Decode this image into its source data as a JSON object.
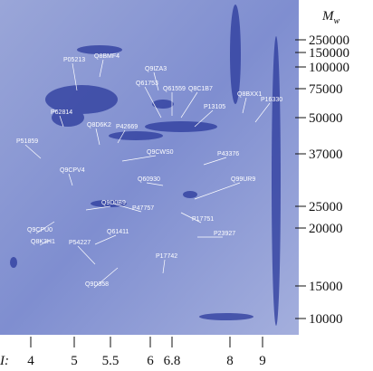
{
  "gel": {
    "spot_labels": [
      "Q9IZA3",
      "Q61753",
      "Q61559",
      "Q8C1B7",
      "P13105",
      "Q8BMF4",
      "P05213",
      "P62814",
      "P42669",
      "Q8D6K2",
      "P51859",
      "Q9CWS0",
      "P43376",
      "Q8BXX1",
      "P16330",
      "Q9CPV4",
      "Q60930",
      "Q9D0B9",
      "P47757",
      "Q99UR9",
      "P17751",
      "P23927",
      "Q9CPU0",
      "Q8K3H1",
      "P54227",
      "Q61411",
      "P17742",
      "Q9D358"
    ],
    "mw_label": {
      "main": "M",
      "sub": "w"
    },
    "mw_markers": [
      "250000",
      "150000",
      "100000",
      "75000",
      "50000",
      "37000",
      "25000",
      "20000",
      "15000",
      "10000"
    ],
    "pi_label": "I:",
    "pi_ticks": [
      "4",
      "5",
      "5.5",
      "6",
      "6.8",
      "8",
      "9"
    ]
  }
}
